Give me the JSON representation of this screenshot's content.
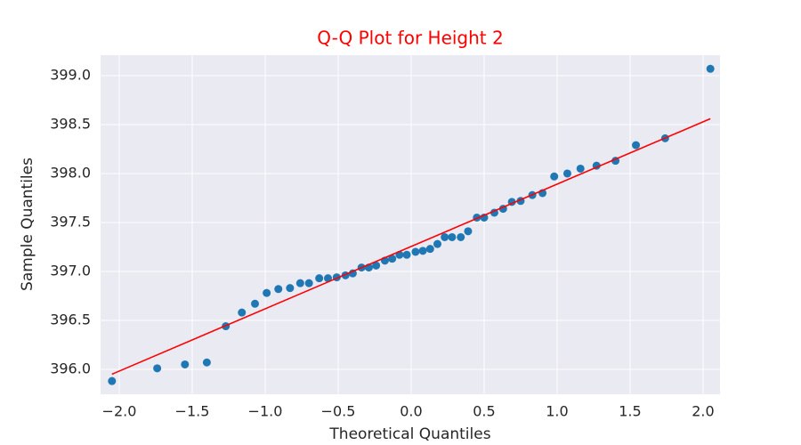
{
  "chart_data": {
    "type": "scatter",
    "title": "Q-Q Plot for Height 2",
    "title_color": "#ff0000",
    "x_label": "Theoretical Quantiles",
    "y_label": "Sample Quantiles",
    "xlim": [
      -2.128,
      2.116
    ],
    "ylim": [
      395.745,
      399.209
    ],
    "xticks": [
      {
        "value": -2,
        "label": "−2.0"
      },
      {
        "value": -1.5,
        "label": "−1.5"
      },
      {
        "value": -1,
        "label": "−1.0"
      },
      {
        "value": -0.5,
        "label": "−0.5"
      },
      {
        "value": 0,
        "label": "0.0"
      },
      0.5,
      {
        "value": 1,
        "label": "1.0"
      },
      1.5,
      {
        "value": 2,
        "label": "2.0"
      }
    ],
    "yticks": [
      {
        "value": 396,
        "label": "396.0"
      },
      396.5,
      {
        "value": 397,
        "label": "397.0"
      },
      397.5,
      {
        "value": 398,
        "label": "398.0"
      },
      398.5,
      {
        "value": 399,
        "label": "399.0"
      }
    ],
    "grid": true,
    "points": {
      "color": "#1f77b4",
      "x": [
        -2.05,
        -1.74,
        -1.55,
        -1.4,
        -1.27,
        -1.16,
        -1.07,
        -0.99,
        -0.91,
        -0.83,
        -0.76,
        -0.7,
        -0.63,
        -0.57,
        -0.51,
        -0.45,
        -0.4,
        -0.34,
        -0.29,
        -0.24,
        -0.18,
        -0.13,
        -0.08,
        -0.03,
        0.03,
        0.08,
        0.13,
        0.18,
        0.23,
        0.28,
        0.34,
        0.39,
        0.45,
        0.5,
        0.57,
        0.63,
        0.69,
        0.75,
        0.83,
        0.9,
        0.98,
        1.07,
        1.16,
        1.27,
        1.4,
        1.54,
        1.74,
        2.05
      ],
      "values": [
        395.88,
        396.01,
        396.05,
        396.07,
        396.44,
        396.58,
        396.67,
        396.78,
        396.82,
        396.83,
        396.88,
        396.88,
        396.93,
        396.93,
        396.94,
        396.96,
        396.98,
        397.04,
        397.04,
        397.06,
        397.11,
        397.13,
        397.17,
        397.17,
        397.2,
        397.21,
        397.23,
        397.28,
        397.35,
        397.35,
        397.35,
        397.41,
        397.55,
        397.55,
        397.6,
        397.64,
        397.71,
        397.72,
        397.78,
        397.8,
        397.97,
        398.0,
        398.05,
        398.08,
        398.13,
        398.29,
        398.36,
        399.07
      ]
    },
    "line": {
      "color": "#ff0000",
      "x": [
        -2.05,
        2.05
      ],
      "values": [
        395.95,
        398.56
      ]
    }
  }
}
